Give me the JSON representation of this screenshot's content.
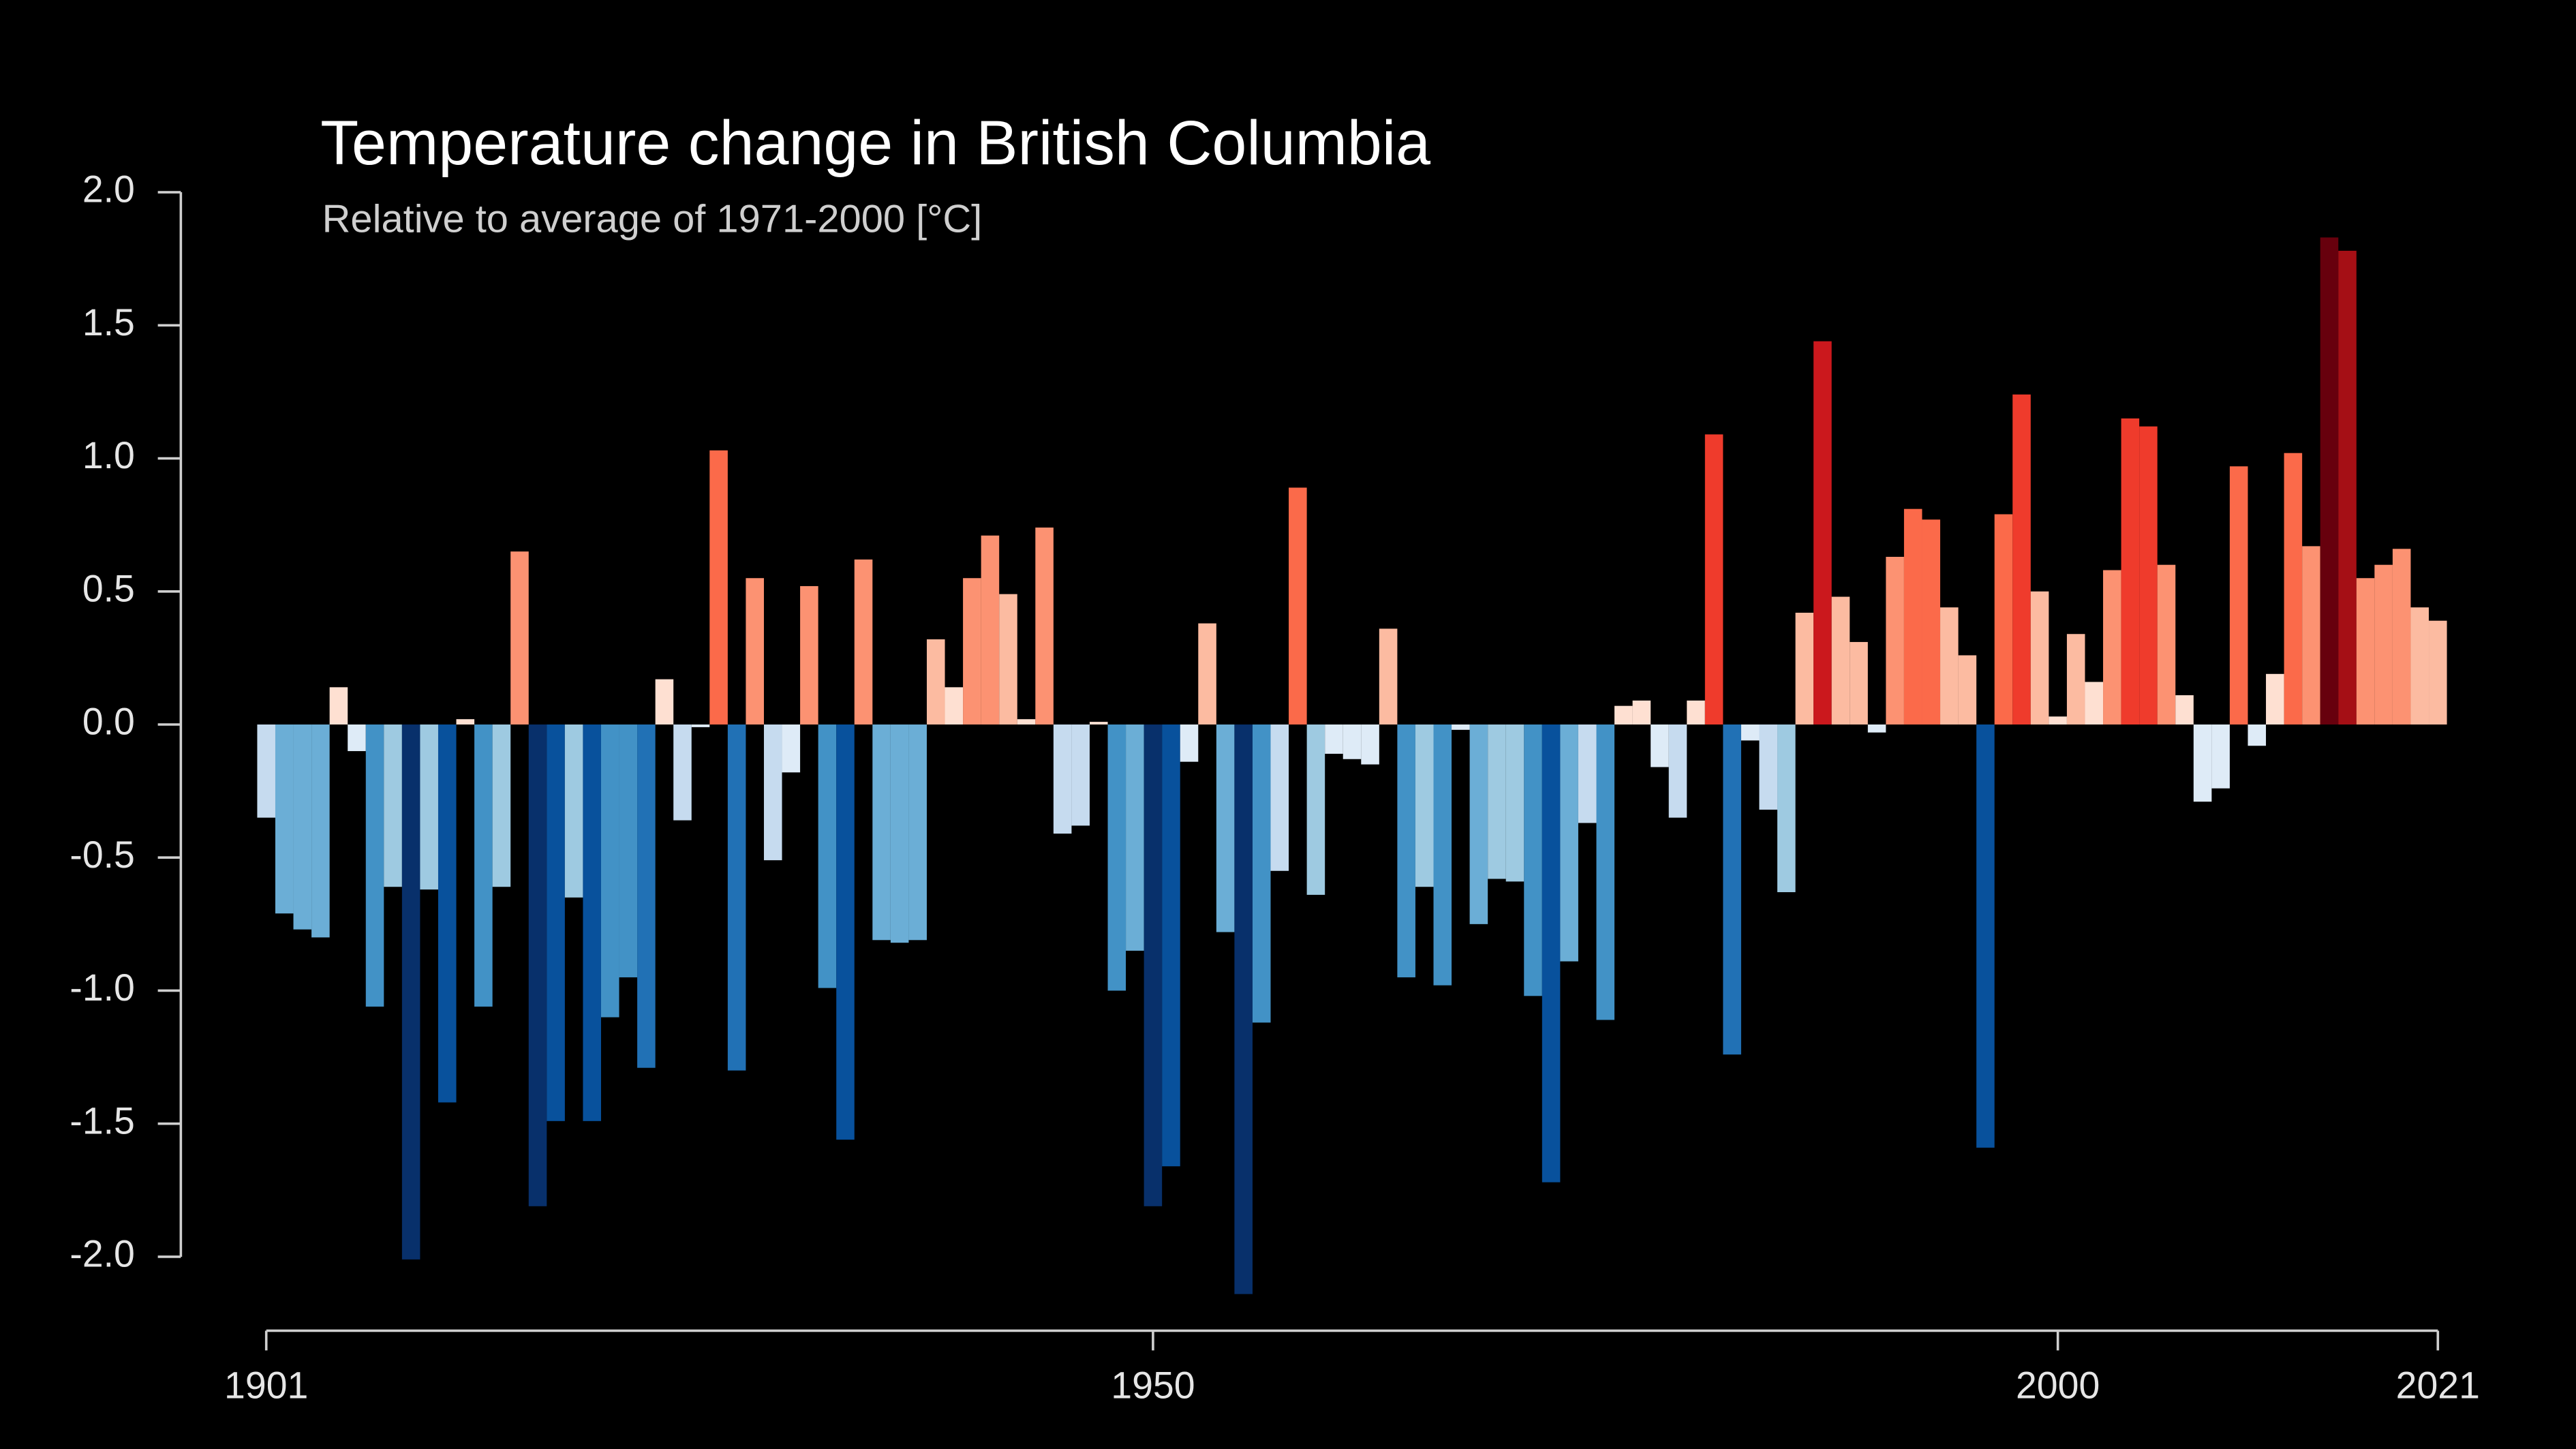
{
  "chart_data": {
    "type": "bar",
    "title": "Temperature change in British Columbia",
    "subtitle": "Relative to average of 1971-2000  [°C]",
    "x": [
      1901,
      1902,
      1903,
      1904,
      1905,
      1906,
      1907,
      1908,
      1909,
      1910,
      1911,
      1912,
      1913,
      1914,
      1915,
      1916,
      1917,
      1918,
      1919,
      1920,
      1921,
      1922,
      1923,
      1924,
      1925,
      1926,
      1927,
      1928,
      1929,
      1930,
      1931,
      1932,
      1933,
      1934,
      1935,
      1936,
      1937,
      1938,
      1939,
      1940,
      1941,
      1942,
      1943,
      1944,
      1945,
      1946,
      1947,
      1948,
      1949,
      1950,
      1951,
      1952,
      1953,
      1954,
      1955,
      1956,
      1957,
      1958,
      1959,
      1960,
      1961,
      1962,
      1963,
      1964,
      1965,
      1966,
      1967,
      1968,
      1969,
      1970,
      1971,
      1972,
      1973,
      1974,
      1975,
      1976,
      1977,
      1978,
      1979,
      1980,
      1981,
      1982,
      1983,
      1984,
      1985,
      1986,
      1987,
      1988,
      1989,
      1990,
      1991,
      1992,
      1993,
      1994,
      1995,
      1996,
      1997,
      1998,
      1999,
      2000,
      2001,
      2002,
      2003,
      2004,
      2005,
      2006,
      2007,
      2008,
      2009,
      2010,
      2011,
      2012,
      2013,
      2014,
      2015,
      2016,
      2017,
      2018,
      2019,
      2020,
      2021
    ],
    "values": [
      -0.35,
      -0.71,
      -0.77,
      -0.8,
      0.14,
      -0.1,
      -1.06,
      -0.61,
      -2.01,
      -0.62,
      -1.42,
      0.02,
      -1.06,
      -0.61,
      0.65,
      -1.81,
      -1.49,
      -0.65,
      -1.49,
      -1.1,
      -0.95,
      -1.29,
      0.17,
      -0.36,
      -0.01,
      1.03,
      -1.3,
      0.55,
      -0.51,
      -0.18,
      0.52,
      -0.99,
      -1.56,
      0.62,
      -0.81,
      -0.82,
      -0.81,
      0.32,
      0.14,
      0.55,
      0.71,
      0.49,
      0.02,
      0.74,
      -0.41,
      -0.38,
      0.01,
      -1.0,
      -0.85,
      -1.81,
      -1.66,
      -0.14,
      0.38,
      -0.78,
      -2.14,
      -1.12,
      -0.55,
      0.89,
      -0.64,
      -0.11,
      -0.13,
      -0.15,
      0.36,
      -0.95,
      -0.61,
      -0.98,
      -0.02,
      -0.75,
      -0.58,
      -0.59,
      -1.02,
      -1.72,
      -0.89,
      -0.37,
      -1.11,
      0.07,
      0.09,
      -0.16,
      -0.35,
      0.09,
      1.09,
      -1.24,
      -0.06,
      -0.32,
      -0.63,
      0.42,
      1.44,
      0.48,
      0.31,
      -0.03,
      0.63,
      0.81,
      0.77,
      0.44,
      0.26,
      -1.59,
      0.79,
      1.24,
      0.5,
      0.03,
      0.34,
      0.16,
      0.58,
      1.15,
      1.12,
      0.6,
      0.11,
      -0.29,
      -0.24,
      0.97,
      -0.08,
      0.19,
      1.02,
      0.67,
      1.83,
      1.78,
      0.55,
      0.6,
      0.66,
      0.44,
      0.39
    ],
    "colors": [
      "#c6dbef",
      "#6baed6",
      "#6baed6",
      "#6baed6",
      "#fee0d2",
      "#deebf7",
      "#4292c6",
      "#9ecae1",
      "#08306b",
      "#9ecae1",
      "#08519c",
      "#fee0d2",
      "#4292c6",
      "#9ecae1",
      "#fc9272",
      "#08306b",
      "#08519c",
      "#9ecae1",
      "#08519c",
      "#4292c6",
      "#4292c6",
      "#2171b5",
      "#fee0d2",
      "#c6dbef",
      "#deebf7",
      "#fb6a4a",
      "#2171b5",
      "#fc9272",
      "#c6dbef",
      "#deebf7",
      "#fc9272",
      "#4292c6",
      "#08519c",
      "#fc9272",
      "#6baed6",
      "#6baed6",
      "#6baed6",
      "#fcbba1",
      "#fee0d2",
      "#fc9272",
      "#fc9272",
      "#fcbba1",
      "#fee0d2",
      "#fc9272",
      "#c6dbef",
      "#c6dbef",
      "#fee0d2",
      "#4292c6",
      "#6baed6",
      "#08306b",
      "#08519c",
      "#deebf7",
      "#fcbba1",
      "#6baed6",
      "#08306b",
      "#4292c6",
      "#c6dbef",
      "#fb6a4a",
      "#9ecae1",
      "#deebf7",
      "#deebf7",
      "#deebf7",
      "#fcbba1",
      "#4292c6",
      "#9ecae1",
      "#4292c6",
      "#deebf7",
      "#6baed6",
      "#9ecae1",
      "#9ecae1",
      "#4292c6",
      "#08519c",
      "#6baed6",
      "#c6dbef",
      "#4292c6",
      "#fee0d2",
      "#fee0d2",
      "#deebf7",
      "#c6dbef",
      "#fee0d2",
      "#ef3b2c",
      "#2171b5",
      "#deebf7",
      "#c6dbef",
      "#9ecae1",
      "#fcbba1",
      "#cb181d",
      "#fcbba1",
      "#fcbba1",
      "#deebf7",
      "#fc9272",
      "#fb6a4a",
      "#fb6a4a",
      "#fcbba1",
      "#fcbba1",
      "#08519c",
      "#fb6a4a",
      "#ef3b2c",
      "#fcbba1",
      "#fee0d2",
      "#fcbba1",
      "#fee0d2",
      "#fc9272",
      "#ef3b2c",
      "#ef3b2c",
      "#fc9272",
      "#fee0d2",
      "#deebf7",
      "#deebf7",
      "#fb6a4a",
      "#deebf7",
      "#fee0d2",
      "#fb6a4a",
      "#fc9272",
      "#67000d",
      "#a50f15",
      "#fc9272",
      "#fc9272",
      "#fc9272",
      "#fcbba1",
      "#fcbba1"
    ],
    "xlim": [
      1901,
      2021
    ],
    "xticks": [
      1901,
      1950,
      2000,
      2021
    ],
    "ylim": [
      -2,
      2
    ],
    "yticks": [
      {
        "value": -2,
        "label": "-2.0"
      },
      -1.5,
      {
        "value": -1,
        "label": "-1.0"
      },
      -0.5,
      {
        "value": 0,
        "label": "0.0"
      },
      0.5,
      {
        "value": 1,
        "label": "1.0"
      },
      1.5,
      {
        "value": 2,
        "label": "2.0"
      }
    ]
  }
}
